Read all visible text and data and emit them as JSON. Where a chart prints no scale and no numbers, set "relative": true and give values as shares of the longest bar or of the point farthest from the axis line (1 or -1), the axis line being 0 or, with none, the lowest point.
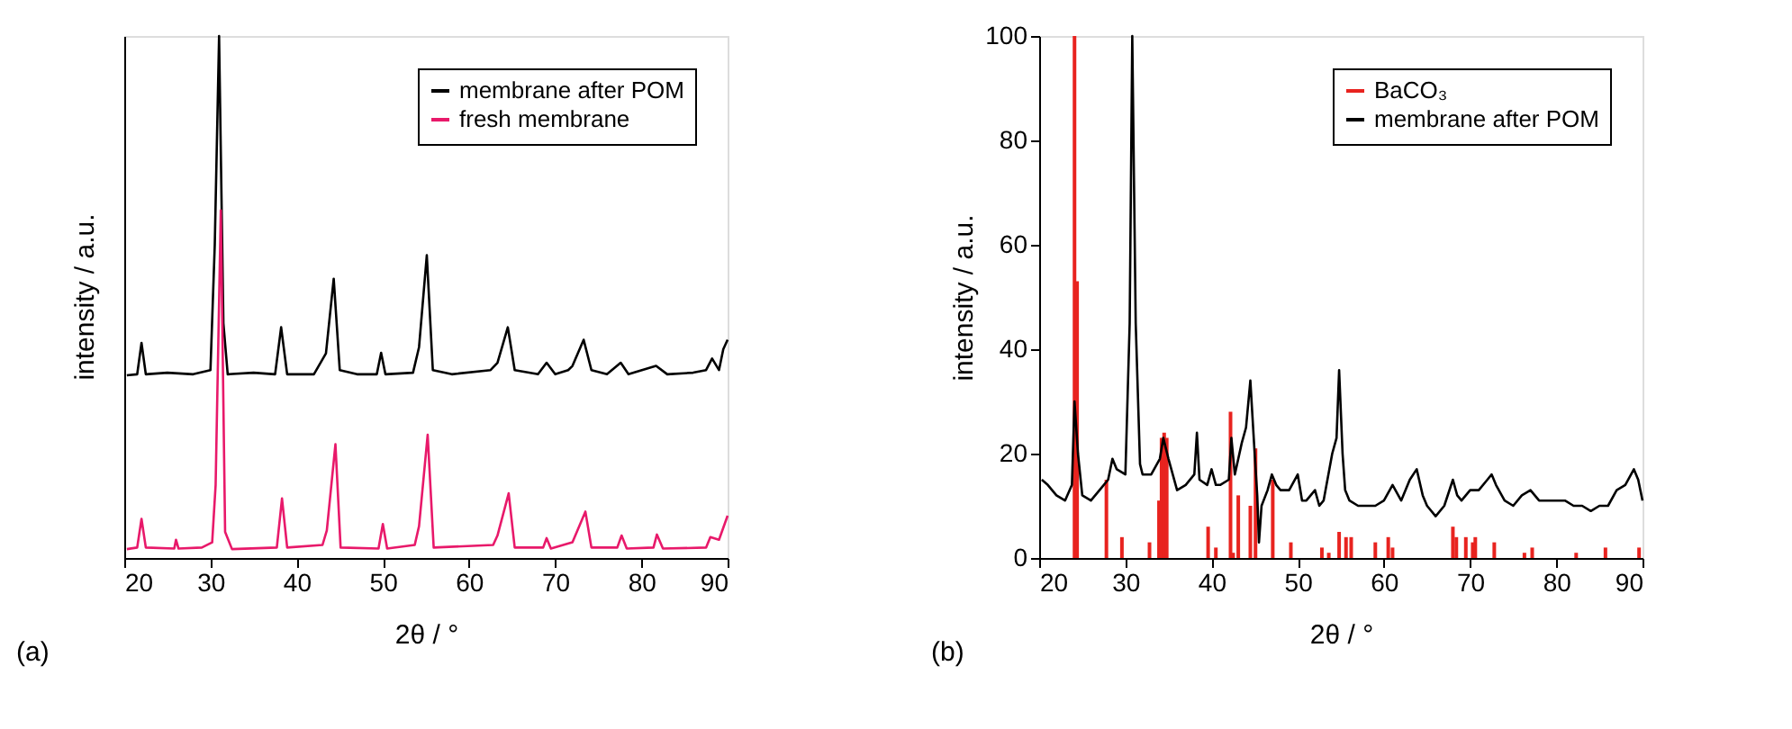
{
  "chart_data": [
    {
      "type": "line",
      "relative": true,
      "xlabel": "2θ / °",
      "ylabel": "intensity / a.u.",
      "xlim": [
        20,
        90
      ],
      "xticks": [
        20,
        30,
        40,
        50,
        60,
        70,
        80,
        90
      ],
      "legend": "top right",
      "grid": false,
      "annotations": [
        "(a)"
      ],
      "series": [
        {
          "name": "membrane after POM",
          "color": "#000000",
          "x": [
            20.3,
            21.5,
            22.0,
            22.5,
            25,
            28,
            30.0,
            30.5,
            31.0,
            31.5,
            32,
            35,
            37.5,
            38.2,
            38.9,
            42,
            43.4,
            44.3,
            45.0,
            47,
            49.3,
            49.8,
            50.3,
            53.5,
            54.2,
            55.1,
            55.8,
            58,
            62.5,
            63.3,
            64.5,
            65.3,
            68,
            69.0,
            70,
            71.5,
            72.0,
            73.3,
            74.2,
            76,
            77.6,
            78.5,
            81.7,
            83,
            86,
            87.5,
            88.2,
            89.0,
            89.5,
            90.0
          ],
          "values": [
            0.35,
            0.352,
            0.412,
            0.352,
            0.355,
            0.352,
            0.36,
            0.6,
            1.0,
            0.45,
            0.352,
            0.355,
            0.352,
            0.442,
            0.352,
            0.352,
            0.392,
            0.535,
            0.36,
            0.352,
            0.352,
            0.393,
            0.352,
            0.355,
            0.404,
            0.58,
            0.36,
            0.352,
            0.36,
            0.374,
            0.442,
            0.36,
            0.352,
            0.374,
            0.352,
            0.36,
            0.368,
            0.418,
            0.36,
            0.352,
            0.374,
            0.352,
            0.368,
            0.352,
            0.355,
            0.36,
            0.382,
            0.36,
            0.4,
            0.418
          ]
        },
        {
          "name": "fresh membrane",
          "color": "#e8196a",
          "x": [
            20.3,
            21.5,
            22.0,
            22.5,
            25.8,
            26.0,
            26.3,
            29,
            30.2,
            30.6,
            31.2,
            31.7,
            32.5,
            37.7,
            38.3,
            38.9,
            43.0,
            43.5,
            44.5,
            45.1,
            49.5,
            50.0,
            50.5,
            53.7,
            54.2,
            55.2,
            55.9,
            62.8,
            63.3,
            64.6,
            65.3,
            68.6,
            69.0,
            69.5,
            72,
            73.5,
            74.2,
            77.2,
            77.7,
            78.3,
            81.4,
            81.8,
            82.5,
            87.5,
            88.0,
            89.0,
            90.0
          ],
          "values": [
            0.017,
            0.02,
            0.075,
            0.02,
            0.018,
            0.035,
            0.018,
            0.02,
            0.03,
            0.14,
            0.666,
            0.05,
            0.017,
            0.02,
            0.114,
            0.02,
            0.025,
            0.053,
            0.218,
            0.02,
            0.018,
            0.065,
            0.018,
            0.025,
            0.061,
            0.236,
            0.02,
            0.025,
            0.043,
            0.124,
            0.02,
            0.02,
            0.038,
            0.018,
            0.03,
            0.089,
            0.02,
            0.02,
            0.043,
            0.018,
            0.02,
            0.045,
            0.018,
            0.02,
            0.04,
            0.035,
            0.081
          ]
        }
      ]
    },
    {
      "type": "line",
      "xlabel": "2θ / °",
      "ylabel": "intensity / a.u.",
      "xlim": [
        20,
        90
      ],
      "xticks": [
        20,
        30,
        40,
        50,
        60,
        70,
        80,
        90
      ],
      "ylim": [
        0,
        100
      ],
      "yticks": [
        0,
        20,
        40,
        60,
        80,
        100
      ],
      "legend": "top right",
      "grid": false,
      "annotations": [
        "(b)"
      ],
      "series": [
        {
          "name": "BaCO₃",
          "type": "bar",
          "color": "#e8231f",
          "x": [
            24.1,
            24.4,
            27.8,
            29.6,
            32.8,
            33.9,
            34.2,
            34.5,
            34.8,
            39.6,
            40.5,
            42.2,
            42.5,
            43.1,
            44.5,
            45.1,
            47.1,
            49.2,
            52.8,
            53.6,
            54.8,
            55.6,
            56.2,
            59.0,
            60.5,
            61.0,
            68.0,
            68.4,
            69.5,
            70.3,
            70.6,
            72.8,
            76.3,
            77.2,
            82.3,
            85.7,
            89.6
          ],
          "values": [
            100,
            53,
            15,
            4,
            3,
            11,
            23,
            24,
            23,
            6,
            2,
            28,
            1,
            12,
            10,
            21,
            15,
            3,
            2,
            1,
            5,
            4,
            4,
            3,
            4,
            2,
            6,
            4,
            4,
            3,
            4,
            3,
            1,
            2,
            1,
            2,
            2
          ]
        },
        {
          "name": "membrane after POM",
          "color": "#000000",
          "x": [
            20.3,
            21,
            22,
            23,
            23.8,
            24.1,
            24.5,
            25,
            26,
            27,
            28,
            28.5,
            29,
            30,
            30.5,
            30.8,
            31.2,
            31.7,
            32,
            33,
            34,
            34.4,
            35,
            36,
            37,
            38,
            38.3,
            38.6,
            39.5,
            40,
            40.5,
            41,
            42,
            42.3,
            42.7,
            43.5,
            44,
            44.5,
            45,
            45.3,
            45.5,
            45.8,
            46.5,
            47,
            47.5,
            48,
            49,
            50,
            50.5,
            51,
            52,
            52.5,
            53,
            54,
            54.5,
            54.8,
            55.2,
            55.5,
            56,
            57,
            58,
            59,
            60,
            61,
            62,
            63,
            63.8,
            64.5,
            65,
            66,
            67,
            68,
            68.5,
            69,
            70,
            71,
            72,
            72.5,
            73,
            74,
            75,
            76,
            77,
            78,
            79,
            80,
            81,
            82,
            83,
            84,
            85,
            86,
            87,
            88,
            89,
            89.5,
            90
          ],
          "values": [
            15,
            14,
            12,
            11,
            14,
            30,
            20,
            12,
            11,
            13,
            15,
            19,
            17,
            16,
            45,
            100,
            45,
            18,
            16,
            16,
            19,
            23,
            19,
            13,
            14,
            16,
            24,
            15,
            14,
            17,
            14,
            14,
            15,
            23,
            16,
            22,
            25,
            34,
            20,
            12,
            3,
            10,
            13,
            16,
            14,
            13,
            13,
            16,
            11,
            11,
            13,
            10,
            11,
            20,
            23,
            36,
            20,
            13,
            11,
            10,
            10,
            10,
            11,
            14,
            11,
            15,
            17,
            12,
            10,
            8,
            10,
            15,
            12,
            11,
            13,
            13,
            15,
            16,
            14,
            11,
            10,
            12,
            13,
            11,
            11,
            11,
            11,
            10,
            10,
            9,
            10,
            10,
            13,
            14,
            17,
            15,
            11
          ]
        }
      ]
    }
  ]
}
